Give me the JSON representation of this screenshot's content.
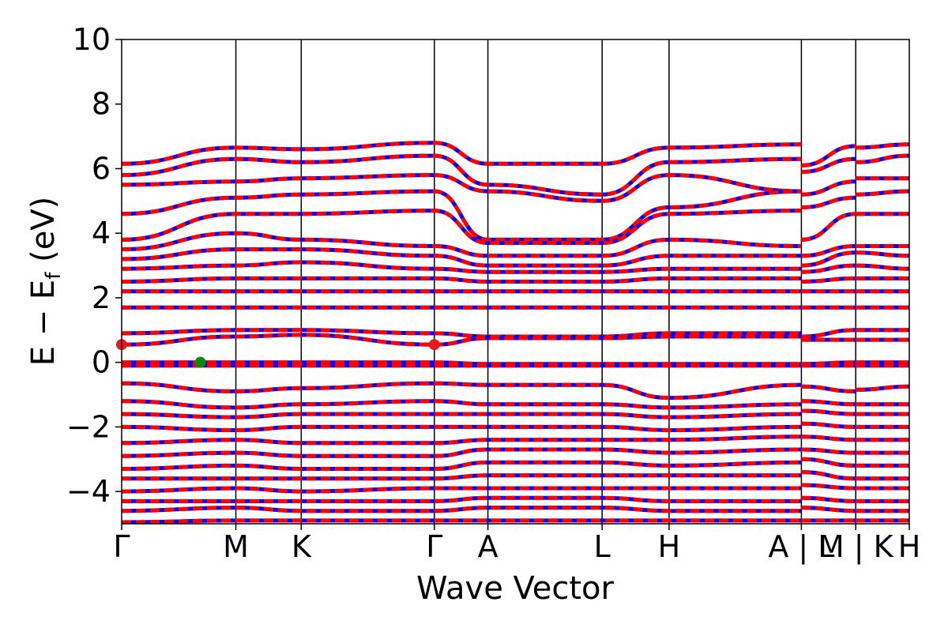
{
  "chart_data": {
    "type": "line",
    "xlabel": "Wave Vector",
    "ylabel": "E − E",
    "ylabel_sub": "f",
    "ylabel_unit": " (eV)",
    "ylim": [
      -5,
      10
    ],
    "yticks": [
      -4,
      -2,
      0,
      2,
      4,
      6,
      8,
      10
    ],
    "ytick_labels": [
      "−4",
      "−2",
      "0",
      "2",
      "4",
      "6",
      "8",
      "10"
    ],
    "kpath": [
      "Γ",
      "M",
      "K",
      "Γ",
      "A",
      "L",
      "H",
      "A",
      "L",
      "M",
      "K",
      "H"
    ],
    "xtick_labels": [
      "Γ",
      "M",
      "K",
      "Γ",
      "A",
      "L",
      "H",
      "A | L",
      "M | K",
      "H"
    ],
    "segment_boundaries": [
      0,
      0.145,
      0.228,
      0.397,
      0.465,
      0.61,
      0.695,
      0.863,
      0.932,
      1.0
    ],
    "grid": false,
    "colors": {
      "spin_up": "#0000ff",
      "spin_down": "#ff0000",
      "markers_red": "#e41a1c",
      "marker_green": "#0a8a0a"
    },
    "series": [
      {
        "values": [
          6.15,
          6.65,
          6.6,
          6.8,
          6.15,
          6.15,
          6.65,
          6.75,
          6.1,
          6.7,
          6.65,
          6.75
        ]
      },
      {
        "values": [
          5.8,
          6.3,
          6.2,
          6.4,
          5.5,
          5.2,
          6.2,
          6.3,
          5.9,
          6.3,
          6.2,
          6.4
        ]
      },
      {
        "values": [
          5.5,
          5.6,
          5.7,
          5.8,
          5.3,
          5.0,
          5.8,
          5.3,
          5.2,
          5.6,
          5.7,
          5.7
        ]
      },
      {
        "values": [
          4.6,
          5.1,
          5.2,
          5.3,
          3.8,
          3.8,
          4.8,
          5.3,
          4.8,
          5.1,
          5.2,
          5.3
        ]
      },
      {
        "values": [
          3.8,
          4.6,
          4.6,
          4.7,
          3.7,
          3.7,
          4.6,
          4.7,
          3.8,
          4.6,
          4.6,
          4.6
        ]
      },
      {
        "values": [
          3.5,
          4.0,
          3.8,
          3.6,
          3.3,
          3.3,
          3.8,
          3.6,
          3.3,
          3.6,
          3.6,
          3.6
        ]
      },
      {
        "values": [
          3.2,
          3.5,
          3.5,
          3.3,
          3.0,
          3.0,
          3.3,
          3.3,
          3.0,
          3.4,
          3.4,
          3.3
        ]
      },
      {
        "values": [
          2.9,
          3.0,
          3.1,
          2.9,
          2.8,
          2.8,
          2.9,
          2.9,
          2.8,
          3.0,
          3.0,
          2.9
        ]
      },
      {
        "values": [
          2.5,
          2.6,
          2.6,
          2.6,
          2.5,
          2.5,
          2.6,
          2.6,
          2.5,
          2.6,
          2.6,
          2.6
        ]
      },
      {
        "values": [
          2.2,
          2.2,
          2.2,
          2.2,
          2.2,
          2.2,
          2.2,
          2.2,
          2.2,
          2.2,
          2.2,
          2.2
        ]
      },
      {
        "values": [
          1.7,
          1.7,
          1.7,
          1.7,
          1.7,
          1.7,
          1.7,
          1.7,
          1.7,
          1.7,
          1.7,
          1.7
        ]
      },
      {
        "values": [
          0.9,
          1.0,
          1.0,
          0.9,
          0.8,
          0.8,
          0.9,
          0.9,
          0.8,
          1.0,
          1.0,
          1.0
        ]
      },
      {
        "values": [
          0.55,
          0.8,
          0.85,
          0.55,
          0.75,
          0.75,
          0.8,
          0.8,
          0.7,
          0.7,
          0.7,
          0.7
        ]
      },
      {
        "values": [
          0.0,
          0.0,
          0.0,
          0.0,
          -0.05,
          -0.05,
          -0.05,
          -0.05,
          -0.05,
          0.0,
          0.0,
          0.0
        ]
      },
      {
        "values": [
          -0.1,
          -0.1,
          -0.1,
          -0.1,
          -0.1,
          -0.1,
          -0.1,
          -0.1,
          -0.1,
          -0.1,
          -0.1,
          -0.1
        ]
      },
      {
        "values": [
          -0.65,
          -0.9,
          -0.8,
          -0.65,
          -0.7,
          -0.7,
          -1.1,
          -0.7,
          -0.75,
          -0.9,
          -0.85,
          -0.75
        ]
      },
      {
        "values": [
          -1.2,
          -1.4,
          -1.3,
          -1.2,
          -1.3,
          -1.3,
          -1.4,
          -1.3,
          -1.2,
          -1.3,
          -1.3,
          -1.3
        ]
      },
      {
        "values": [
          -1.6,
          -1.7,
          -1.6,
          -1.6,
          -1.6,
          -1.6,
          -1.7,
          -1.6,
          -1.5,
          -1.6,
          -1.6,
          -1.6
        ]
      },
      {
        "values": [
          -2.0,
          -2.1,
          -2.0,
          -2.0,
          -2.0,
          -2.0,
          -2.1,
          -2.0,
          -1.9,
          -2.0,
          -2.0,
          -2.0
        ]
      },
      {
        "values": [
          -2.5,
          -2.4,
          -2.5,
          -2.5,
          -2.4,
          -2.4,
          -2.4,
          -2.3,
          -2.3,
          -2.4,
          -2.4,
          -2.4
        ]
      },
      {
        "values": [
          -2.9,
          -2.8,
          -2.9,
          -2.9,
          -2.7,
          -2.7,
          -2.8,
          -2.7,
          -2.7,
          -2.8,
          -2.8,
          -2.8
        ]
      },
      {
        "values": [
          -3.3,
          -3.2,
          -3.3,
          -3.3,
          -3.1,
          -3.1,
          -3.2,
          -3.1,
          -3.0,
          -3.2,
          -3.2,
          -3.2
        ]
      },
      {
        "values": [
          -3.6,
          -3.6,
          -3.6,
          -3.6,
          -3.5,
          -3.5,
          -3.5,
          -3.5,
          -3.4,
          -3.6,
          -3.6,
          -3.6
        ]
      },
      {
        "values": [
          -4.0,
          -3.9,
          -4.0,
          -3.9,
          -3.9,
          -3.9,
          -3.9,
          -3.9,
          -3.8,
          -3.9,
          -3.9,
          -3.9
        ]
      },
      {
        "values": [
          -4.3,
          -4.3,
          -4.3,
          -4.3,
          -4.2,
          -4.2,
          -4.3,
          -4.3,
          -4.2,
          -4.3,
          -4.3,
          -4.3
        ]
      },
      {
        "values": [
          -4.6,
          -4.5,
          -4.6,
          -4.6,
          -4.5,
          -4.5,
          -4.6,
          -4.6,
          -4.5,
          -4.6,
          -4.6,
          -4.6
        ]
      },
      {
        "values": [
          -4.95,
          -4.9,
          -4.9,
          -4.9,
          -4.9,
          -4.9,
          -4.9,
          -4.9,
          -4.9,
          -4.9,
          -4.9,
          -4.9
        ]
      }
    ],
    "markers": [
      {
        "x": 0.0,
        "y": 0.55,
        "color": "red"
      },
      {
        "x": 0.397,
        "y": 0.55,
        "color": "red"
      },
      {
        "x": 0.1,
        "y": 0.0,
        "color": "green"
      }
    ]
  }
}
